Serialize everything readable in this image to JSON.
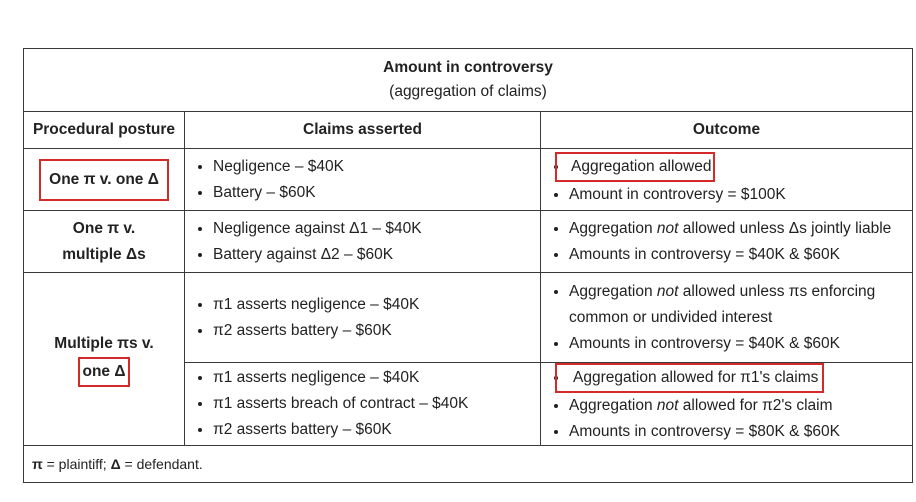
{
  "title": "Amount in controversy",
  "subtitle": "(aggregation of claims)",
  "headers": [
    "Procedural posture",
    "Claims asserted",
    "Outcome"
  ],
  "rows": [
    {
      "posture": "One π v. one Δ",
      "claims": [
        "Negligence – $40K",
        "Battery – $60K"
      ],
      "outcomes": [
        "Aggregation allowed",
        "Amount in controversy = $100K"
      ]
    },
    {
      "posture_line1": "One π v.",
      "posture_line2": "multiple Δs",
      "claims": [
        "Negligence against Δ1 – $40K",
        "Battery against Δ2 – $60K"
      ],
      "outcomes": [
        {
          "pre": "Aggregation ",
          "em": "not",
          "post": " allowed unless Δs jointly liable"
        },
        "Amounts in controversy = $40K & $60K"
      ]
    },
    {
      "posture_line1": "Multiple πs v.",
      "posture_line2": "one Δ",
      "sub_a": {
        "claims": [
          "π1 asserts negligence – $40K",
          "π2 asserts battery – $60K"
        ],
        "outcomes": [
          {
            "pre": "Aggregation ",
            "em": "not",
            "post": " allowed unless πs enforcing",
            "line2": "common or undivided interest"
          },
          "Amounts in controversy = $40K & $60K"
        ]
      },
      "sub_b": {
        "claims": [
          "π1 asserts negligence – $40K",
          "π1 asserts breach of contract – $40K",
          "π2 asserts battery – $60K"
        ],
        "outcomes": [
          "Aggregation allowed for π1's claims",
          {
            "pre": "Aggregation ",
            "em": "not",
            "post": " allowed for π2's claim"
          },
          "Amounts in controversy = $80K & $60K"
        ]
      }
    }
  ],
  "footnote": {
    "pi": "π",
    "pi_def": " = plaintiff; ",
    "delta": "Δ",
    "delta_def": " = defendant."
  },
  "colors": {
    "highlight_box": "#d52a2a",
    "border": "#3a3a3a",
    "text": "#222222"
  }
}
